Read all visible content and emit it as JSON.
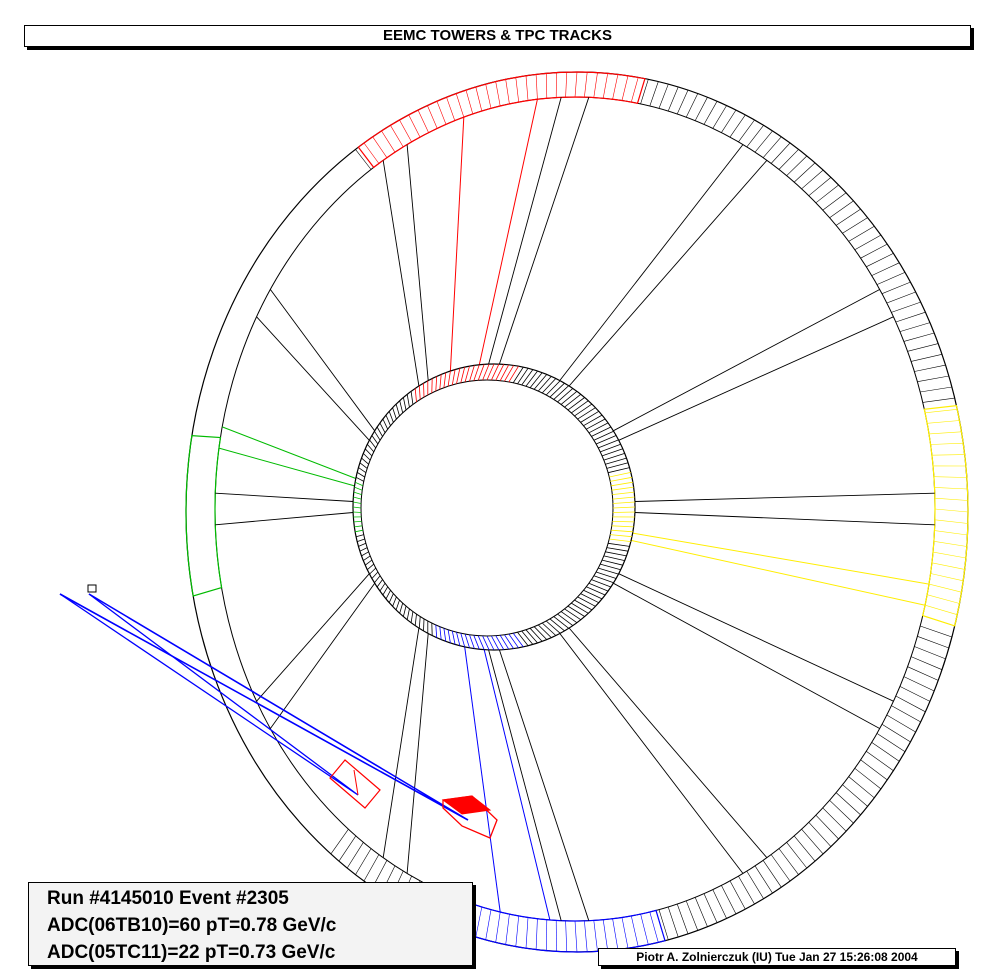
{
  "title": "EEMC TOWERS & TPC TRACKS",
  "info": {
    "run_line": "Run #4145010 Event #2305",
    "adc_line_1": "ADC(06TB10)=60 pT=0.78 GeV/c",
    "adc_line_2": "ADC(05TC11)=22 pT=0.73 GeV/c"
  },
  "credit": "Piotr A. Zolnierczuk (IU) Tue Jan 27 15:26:08 2004",
  "colors": {
    "outline": "#000000",
    "highlight_red": "#ff0000",
    "highlight_yellow": "#ffee00",
    "highlight_green": "#00bb00",
    "track_blue": "#0000ff"
  },
  "sectors": {
    "count": 12
  }
}
